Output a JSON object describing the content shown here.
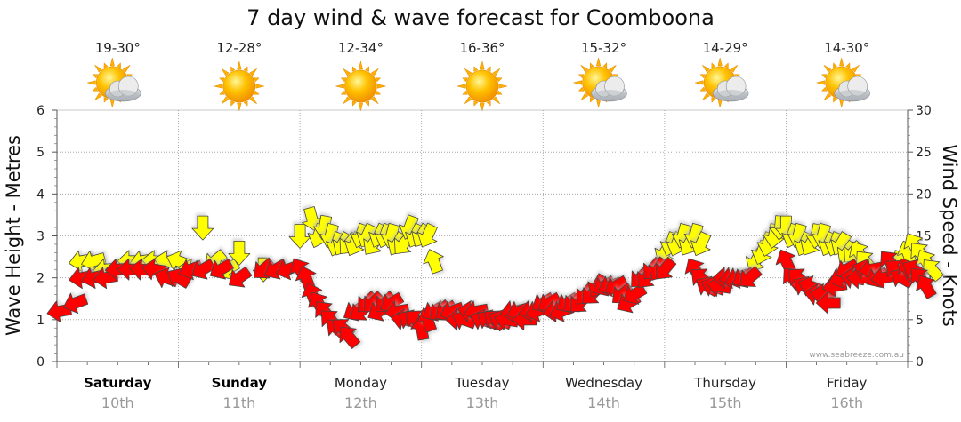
{
  "chart_data": {
    "type": "line",
    "title": "7 day wind & wave forecast for Coomboona",
    "ylabel_left": "Wave Height - Metres",
    "ylabel_right": "Wind Speed - Knots",
    "ylim_left": [
      0,
      6
    ],
    "ylim_right": [
      0,
      30
    ],
    "left_ticks": [
      "0",
      "1",
      "2",
      "3",
      "4",
      "5",
      "6"
    ],
    "right_ticks": [
      "0",
      "5",
      "10",
      "15",
      "20",
      "25",
      "30"
    ],
    "credit": "www.seabreeze.com.au",
    "days": [
      {
        "day": "Saturday",
        "date": "10th",
        "temp": "19-30°",
        "icon": "partly-cloudy-icon",
        "bold": true
      },
      {
        "day": "Sunday",
        "date": "11th",
        "temp": "12-28°",
        "icon": "sunny-icon",
        "bold": true
      },
      {
        "day": "Monday",
        "date": "12th",
        "temp": "12-34°",
        "icon": "sunny-icon",
        "bold": false
      },
      {
        "day": "Tuesday",
        "date": "13th",
        "temp": "16-36°",
        "icon": "sunny-icon",
        "bold": false
      },
      {
        "day": "Wednesday",
        "date": "14th",
        "temp": "15-32°",
        "icon": "partly-cloudy-icon",
        "bold": false
      },
      {
        "day": "Thursday",
        "date": "15th",
        "temp": "14-29°",
        "icon": "partly-cloudy-icon",
        "bold": false
      },
      {
        "day": "Friday",
        "date": "16th",
        "temp": "14-30°",
        "icon": "partly-cloudy-icon",
        "bold": false
      }
    ],
    "colors": {
      "wind": "#ff0000",
      "gust": "#ffff00",
      "outline": "#444444",
      "shadow": "#bbbbbb",
      "grid": "#999999",
      "date": "#999999"
    },
    "series": [
      {
        "name": "Wind Speed",
        "unit": "knots",
        "points": [
          [
            0.02,
            6,
            80
          ],
          [
            0.15,
            7,
            70
          ],
          [
            0.2,
            10,
            80
          ],
          [
            0.3,
            10,
            75
          ],
          [
            0.4,
            10,
            80
          ],
          [
            0.5,
            11,
            85
          ],
          [
            0.6,
            11,
            90
          ],
          [
            0.7,
            11,
            95
          ],
          [
            0.8,
            11,
            100
          ],
          [
            0.9,
            10,
            110
          ],
          [
            1.0,
            10,
            120
          ],
          [
            1.1,
            11,
            70
          ],
          [
            1.2,
            11,
            60
          ],
          [
            1.35,
            11,
            60
          ],
          [
            1.5,
            10,
            55
          ],
          [
            1.7,
            11,
            50
          ],
          [
            1.8,
            11,
            60
          ],
          [
            1.9,
            11,
            70
          ],
          [
            2.0,
            11,
            150
          ],
          [
            2.05,
            10,
            160
          ],
          [
            2.1,
            8,
            160
          ],
          [
            2.15,
            7,
            150
          ],
          [
            2.2,
            6,
            140
          ],
          [
            2.25,
            5,
            135
          ],
          [
            2.3,
            4,
            130
          ],
          [
            2.35,
            4,
            130
          ],
          [
            2.4,
            3,
            140
          ],
          [
            2.45,
            6,
            60
          ],
          [
            2.5,
            6,
            50
          ],
          [
            2.55,
            7,
            45
          ],
          [
            2.6,
            7,
            45
          ],
          [
            2.65,
            6,
            60
          ],
          [
            2.7,
            7,
            45
          ],
          [
            2.75,
            7,
            60
          ],
          [
            2.8,
            6,
            80
          ],
          [
            2.85,
            5,
            100
          ],
          [
            2.9,
            5,
            120
          ],
          [
            2.95,
            5,
            130
          ],
          [
            3.0,
            4,
            170
          ],
          [
            3.05,
            5,
            160
          ],
          [
            3.1,
            6,
            60
          ],
          [
            3.15,
            6,
            50
          ],
          [
            3.2,
            6,
            55
          ],
          [
            3.25,
            6,
            70
          ],
          [
            3.3,
            5,
            90
          ],
          [
            3.35,
            5,
            110
          ],
          [
            3.4,
            6,
            100
          ],
          [
            3.45,
            6,
            80
          ],
          [
            3.5,
            5,
            110
          ],
          [
            3.55,
            5,
            120
          ],
          [
            3.6,
            5,
            130
          ],
          [
            3.65,
            5,
            115
          ],
          [
            3.7,
            5,
            100
          ],
          [
            3.75,
            6,
            80
          ],
          [
            3.8,
            6,
            70
          ],
          [
            3.85,
            5,
            90
          ],
          [
            3.9,
            6,
            80
          ],
          [
            3.95,
            6,
            70
          ],
          [
            4.0,
            7,
            60
          ],
          [
            4.05,
            7,
            60
          ],
          [
            4.1,
            6,
            80
          ],
          [
            4.15,
            6,
            70
          ],
          [
            4.2,
            7,
            60
          ],
          [
            4.25,
            7,
            50
          ],
          [
            4.3,
            7,
            45
          ],
          [
            4.35,
            8,
            40
          ],
          [
            4.4,
            8,
            45
          ],
          [
            4.45,
            9,
            30
          ],
          [
            4.5,
            9,
            60
          ],
          [
            4.55,
            9,
            70
          ],
          [
            4.6,
            9,
            60
          ],
          [
            4.65,
            8,
            50
          ],
          [
            4.7,
            7,
            60
          ],
          [
            4.75,
            8,
            60
          ],
          [
            4.8,
            10,
            45
          ],
          [
            4.85,
            10,
            40
          ],
          [
            4.9,
            11,
            40
          ],
          [
            4.95,
            11,
            30
          ],
          [
            5.0,
            11,
            40
          ],
          [
            5.25,
            11,
            150
          ],
          [
            5.3,
            10,
            130
          ],
          [
            5.35,
            9,
            120
          ],
          [
            5.4,
            9,
            110
          ],
          [
            5.45,
            9,
            100
          ],
          [
            5.5,
            10,
            90
          ],
          [
            5.55,
            10,
            80
          ],
          [
            5.6,
            10,
            70
          ],
          [
            5.65,
            10,
            60
          ],
          [
            5.7,
            10,
            50
          ],
          [
            6.0,
            12,
            155
          ],
          [
            6.05,
            10,
            140
          ],
          [
            6.1,
            10,
            130
          ],
          [
            6.15,
            9,
            120
          ],
          [
            6.2,
            9,
            110
          ],
          [
            6.25,
            8,
            100
          ],
          [
            6.3,
            8,
            100
          ],
          [
            6.35,
            7,
            90
          ],
          [
            6.4,
            9,
            80
          ],
          [
            6.45,
            10,
            70
          ],
          [
            6.5,
            11,
            60
          ],
          [
            6.55,
            10,
            100
          ],
          [
            6.6,
            10,
            90
          ],
          [
            6.65,
            11,
            110
          ],
          [
            6.7,
            11,
            80
          ],
          [
            6.75,
            10,
            60
          ],
          [
            6.8,
            10,
            80
          ],
          [
            6.85,
            12,
            140
          ],
          [
            6.9,
            11,
            130
          ],
          [
            6.95,
            10,
            120
          ],
          [
            7.0,
            11,
            150
          ],
          [
            7.05,
            11,
            120
          ],
          [
            7.1,
            10,
            140
          ],
          [
            7.15,
            9,
            150
          ]
        ]
      },
      {
        "name": "Wind Gust",
        "unit": "knots",
        "points": [
          [
            0.2,
            12,
            80
          ],
          [
            0.3,
            12,
            75
          ],
          [
            0.4,
            11,
            85
          ],
          [
            0.5,
            11,
            90
          ],
          [
            0.6,
            12,
            90
          ],
          [
            0.7,
            12,
            80
          ],
          [
            0.8,
            12,
            95
          ],
          [
            0.9,
            12,
            100
          ],
          [
            1.0,
            12,
            110
          ],
          [
            1.1,
            11,
            100
          ],
          [
            1.2,
            16,
            0
          ],
          [
            1.3,
            12,
            50
          ],
          [
            1.4,
            11,
            60
          ],
          [
            1.5,
            13,
            0
          ],
          [
            1.7,
            11,
            0
          ],
          [
            2.0,
            15,
            0
          ],
          [
            2.1,
            17,
            345
          ],
          [
            2.15,
            15,
            20
          ],
          [
            2.2,
            16,
            10
          ],
          [
            2.25,
            15,
            15
          ],
          [
            2.3,
            14,
            20
          ],
          [
            2.35,
            14,
            30
          ],
          [
            2.4,
            14,
            40
          ],
          [
            2.45,
            14,
            25
          ],
          [
            2.5,
            15,
            20
          ],
          [
            2.55,
            15,
            25
          ],
          [
            2.6,
            14,
            35
          ],
          [
            2.65,
            15,
            25
          ],
          [
            2.7,
            15,
            20
          ],
          [
            2.75,
            15,
            15
          ],
          [
            2.8,
            14,
            30
          ],
          [
            2.85,
            14,
            40
          ],
          [
            2.9,
            16,
            20
          ],
          [
            2.95,
            15,
            25
          ],
          [
            3.0,
            15,
            30
          ],
          [
            3.05,
            15,
            25
          ],
          [
            3.1,
            12,
            160
          ],
          [
            5.0,
            13,
            30
          ],
          [
            5.05,
            14,
            20
          ],
          [
            5.1,
            14,
            20
          ],
          [
            5.15,
            15,
            15
          ],
          [
            5.2,
            14,
            30
          ],
          [
            5.25,
            15,
            15
          ],
          [
            5.3,
            14,
            25
          ],
          [
            5.75,
            12,
            30
          ],
          [
            5.8,
            13,
            20
          ],
          [
            5.85,
            14,
            15
          ],
          [
            5.9,
            15,
            10
          ],
          [
            5.95,
            16,
            5
          ],
          [
            6.0,
            16,
            0
          ],
          [
            6.05,
            15,
            20
          ],
          [
            6.1,
            15,
            15
          ],
          [
            6.15,
            14,
            25
          ],
          [
            6.2,
            14,
            30
          ],
          [
            6.25,
            15,
            10
          ],
          [
            6.3,
            15,
            15
          ],
          [
            6.35,
            14,
            25
          ],
          [
            6.4,
            14,
            20
          ],
          [
            6.45,
            14,
            30
          ],
          [
            6.5,
            13,
            35
          ],
          [
            6.55,
            13,
            40
          ],
          [
            6.6,
            13,
            150
          ],
          [
            6.65,
            12,
            140
          ],
          [
            6.9,
            11,
            170
          ],
          [
            6.95,
            12,
            150
          ],
          [
            7.0,
            13,
            160
          ],
          [
            7.05,
            14,
            150
          ],
          [
            7.1,
            13,
            140
          ],
          [
            7.15,
            12,
            150
          ],
          [
            7.2,
            11,
            140
          ]
        ]
      }
    ]
  }
}
